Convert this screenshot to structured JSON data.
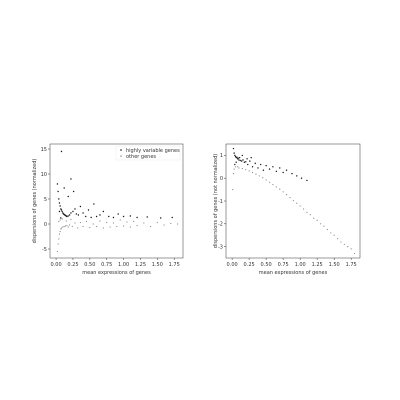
{
  "colors": {
    "highly_variable": "#111111",
    "other": "#8c8c8c",
    "frame": "#333333",
    "background": "#ffffff"
  },
  "chart_data": [
    {
      "type": "scatter",
      "xlabel": "mean expressions of genes",
      "ylabel": "dispersions of genes (normalized)",
      "xlim": [
        -0.09,
        1.88
      ],
      "ylim": [
        -6.8,
        16.0
      ],
      "xticks": [
        "0.00",
        "0.25",
        "0.50",
        "0.75",
        "1.00",
        "1.25",
        "1.50",
        "1.75"
      ],
      "xtick_values": [
        0,
        0.25,
        0.5,
        0.75,
        1.0,
        1.25,
        1.5,
        1.75
      ],
      "yticks": [
        "-5",
        "0",
        "5",
        "10",
        "15"
      ],
      "ytick_values": [
        -5,
        0,
        5,
        10,
        15
      ],
      "grid": false,
      "legend": {
        "placement": "top-right",
        "entries": [
          "highly variable genes",
          "other genes"
        ]
      },
      "series": [
        {
          "name": "highly variable genes",
          "color_key": "highly_variable",
          "x": [
            0.02,
            0.03,
            0.04,
            0.05,
            0.06,
            0.07,
            0.08,
            0.09,
            0.1,
            0.11,
            0.12,
            0.13,
            0.14,
            0.15,
            0.16,
            0.18,
            0.2,
            0.22,
            0.25,
            0.28,
            0.3,
            0.33,
            0.36,
            0.4,
            0.44,
            0.48,
            0.52,
            0.56,
            0.6,
            0.65,
            0.7,
            0.78,
            0.85,
            0.92,
            1.0,
            1.1,
            1.2,
            1.35,
            1.55,
            1.72,
            0.08,
            0.12,
            0.22,
            0.26,
            0.18,
            0.05,
            0.07
          ],
          "y": [
            8.0,
            6.5,
            5.0,
            4.2,
            3.6,
            3.0,
            2.8,
            2.5,
            2.2,
            2.0,
            1.9,
            1.8,
            1.7,
            1.6,
            1.5,
            1.6,
            1.8,
            2.2,
            2.5,
            3.0,
            2.0,
            1.8,
            3.5,
            2.2,
            1.5,
            2.8,
            1.3,
            4.0,
            1.5,
            1.8,
            2.5,
            1.5,
            1.3,
            2.0,
            1.5,
            1.6,
            1.3,
            1.4,
            1.2,
            1.3,
            14.5,
            7.2,
            9.0,
            6.5,
            5.5,
            2.5,
            1.2
          ]
        },
        {
          "name": "other genes",
          "color_key": "other",
          "x": [
            0.02,
            0.03,
            0.04,
            0.05,
            0.06,
            0.07,
            0.08,
            0.1,
            0.12,
            0.14,
            0.16,
            0.18,
            0.2,
            0.24,
            0.28,
            0.32,
            0.36,
            0.4,
            0.45,
            0.5,
            0.55,
            0.6,
            0.65,
            0.7,
            0.75,
            0.8,
            0.85,
            0.9,
            0.95,
            1.0,
            1.05,
            1.1,
            1.15,
            1.2,
            1.3,
            1.4,
            1.5,
            1.6,
            1.7,
            1.8,
            0.04,
            0.06,
            0.09,
            0.15,
            0.22
          ],
          "y": [
            -5.5,
            -4.0,
            -3.0,
            -2.0,
            -1.5,
            -1.0,
            -0.8,
            -0.6,
            -0.5,
            -0.4,
            -0.3,
            -0.6,
            -0.2,
            -0.5,
            0.2,
            -0.8,
            0.3,
            -0.5,
            0.5,
            -0.7,
            0.0,
            -0.5,
            0.6,
            -0.8,
            0.3,
            -0.6,
            0.2,
            -0.5,
            0.8,
            -0.4,
            0.4,
            -0.6,
            0.5,
            -0.3,
            0.2,
            -0.5,
            0.3,
            -0.2,
            0.1,
            0.0,
            0.5,
            0.8,
            1.0,
            0.6,
            0.9
          ]
        }
      ]
    },
    {
      "type": "scatter",
      "xlabel": "mean expressions of genes",
      "ylabel": "dispersions of genes (not normalized)",
      "xlim": [
        -0.09,
        1.88
      ],
      "ylim": [
        -3.5,
        1.5
      ],
      "xticks": [
        "0.00",
        "0.25",
        "0.50",
        "0.75",
        "1.00",
        "1.25",
        "1.50",
        "1.75"
      ],
      "xtick_values": [
        0,
        0.25,
        0.5,
        0.75,
        1.0,
        1.25,
        1.5,
        1.75
      ],
      "yticks": [
        "-3",
        "-2",
        "-1",
        "0",
        "1"
      ],
      "ytick_values": [
        -3,
        -2,
        -1,
        0,
        1
      ],
      "grid": false,
      "series": [
        {
          "name": "highly variable genes",
          "color_key": "highly_variable",
          "x": [
            0.02,
            0.03,
            0.04,
            0.05,
            0.06,
            0.07,
            0.08,
            0.09,
            0.1,
            0.12,
            0.14,
            0.16,
            0.18,
            0.2,
            0.23,
            0.26,
            0.3,
            0.34,
            0.38,
            0.42,
            0.46,
            0.5,
            0.55,
            0.6,
            0.65,
            0.7,
            0.75,
            0.8,
            0.88,
            0.95,
            1.02,
            1.1,
            0.04,
            0.06,
            0.11,
            0.15,
            0.22,
            0.28
          ],
          "y": [
            1.3,
            1.1,
            1.0,
            0.95,
            0.9,
            0.92,
            0.85,
            0.88,
            0.8,
            0.78,
            0.75,
            0.8,
            0.7,
            0.72,
            0.6,
            0.75,
            0.5,
            0.65,
            0.45,
            0.6,
            0.35,
            0.55,
            0.4,
            0.5,
            0.3,
            0.45,
            0.25,
            0.35,
            0.2,
            0.1,
            0.0,
            -0.1,
            0.6,
            0.7,
            0.9,
            1.0,
            0.85,
            0.9
          ]
        },
        {
          "name": "other genes",
          "color_key": "other",
          "x": [
            0.01,
            0.02,
            0.03,
            0.05,
            0.08,
            0.1,
            0.15,
            0.2,
            0.25,
            0.3,
            0.35,
            0.4,
            0.45,
            0.5,
            0.55,
            0.6,
            0.65,
            0.7,
            0.75,
            0.8,
            0.85,
            0.9,
            0.95,
            1.0,
            1.05,
            1.1,
            1.15,
            1.2,
            1.25,
            1.3,
            1.35,
            1.4,
            1.45,
            1.5,
            1.55,
            1.6,
            1.65,
            1.7,
            1.75,
            1.8
          ],
          "y": [
            -0.5,
            0.2,
            0.4,
            0.5,
            0.5,
            0.45,
            0.42,
            0.38,
            0.32,
            0.25,
            0.18,
            0.1,
            0.02,
            -0.08,
            -0.18,
            -0.28,
            -0.38,
            -0.48,
            -0.6,
            -0.72,
            -0.85,
            -0.98,
            -1.1,
            -1.22,
            -1.35,
            -1.5,
            -1.6,
            -1.75,
            -1.85,
            -2.0,
            -2.1,
            -2.25,
            -2.4,
            -2.5,
            -2.65,
            -2.8,
            -2.9,
            -3.0,
            -3.1,
            -3.3
          ]
        }
      ]
    }
  ]
}
